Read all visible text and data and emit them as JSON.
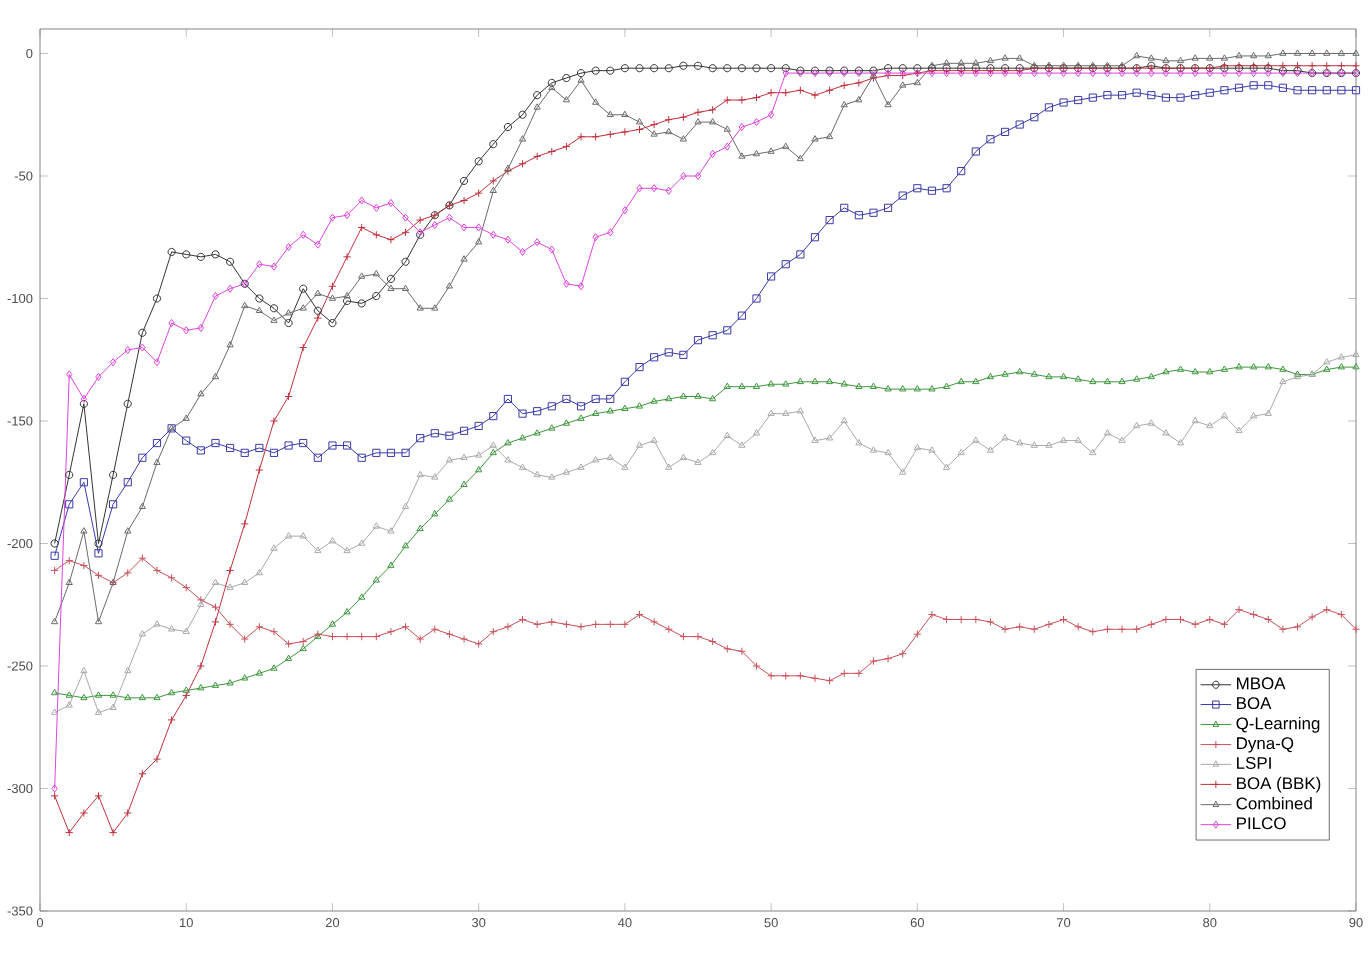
{
  "chart_data": {
    "type": "line",
    "xlim": [
      0,
      90
    ],
    "ylim": [
      -350,
      10
    ],
    "xticks": [
      0,
      10,
      20,
      30,
      40,
      50,
      60,
      70,
      80,
      90
    ],
    "yticks": [
      -350,
      -300,
      -250,
      -200,
      -150,
      -100,
      -50,
      0
    ],
    "x": [
      1,
      2,
      3,
      4,
      5,
      6,
      7,
      8,
      9,
      10,
      11,
      12,
      13,
      14,
      15,
      16,
      17,
      18,
      19,
      20,
      21,
      22,
      23,
      24,
      25,
      26,
      27,
      28,
      29,
      30,
      31,
      32,
      33,
      34,
      35,
      36,
      37,
      38,
      39,
      40,
      41,
      42,
      43,
      44,
      45,
      46,
      47,
      48,
      49,
      50,
      51,
      52,
      53,
      54,
      55,
      56,
      57,
      58,
      59,
      60,
      61,
      62,
      63,
      64,
      65,
      66,
      67,
      68,
      69,
      70,
      71,
      72,
      73,
      74,
      75,
      76,
      77,
      78,
      79,
      80,
      81,
      82,
      83,
      84,
      85,
      86,
      87,
      88,
      89,
      90
    ],
    "grid": false,
    "legend": "bottom right",
    "line_style": "solid",
    "series": [
      {
        "name": "MBOA",
        "color": "#333333",
        "marker": "circle",
        "values": [
          -200,
          -172,
          -143,
          -200,
          -172,
          -143,
          -114,
          -100,
          -81,
          -82,
          -83,
          -82,
          -85,
          -94,
          -100,
          -104,
          -110,
          -96,
          -105,
          -110,
          -101,
          -102,
          -99,
          -92,
          -85,
          -74,
          -66,
          -62,
          -52,
          -44,
          -37,
          -30,
          -25,
          -17,
          -12,
          -10,
          -8,
          -7,
          -7,
          -6,
          -6,
          -6,
          -6,
          -5,
          -5,
          -6,
          -6,
          -6,
          -6,
          -6,
          -6,
          -7,
          -7,
          -7,
          -7,
          -7,
          -7,
          -6,
          -6,
          -6,
          -6,
          -6,
          -6,
          -6,
          -6,
          -6,
          -6,
          -6,
          -6,
          -6,
          -6,
          -6,
          -6,
          -6,
          -6,
          -5,
          -6,
          -6,
          -6,
          -6,
          -6,
          -6,
          -6,
          -6,
          -7,
          -7,
          -8,
          -8,
          -8,
          -8
        ]
      },
      {
        "name": "BOA",
        "color": "#3a3aa8",
        "marker": "square",
        "values": [
          -205,
          -184,
          -175,
          -204,
          -184,
          -175,
          -165,
          -159,
          -153,
          -158,
          -162,
          -159,
          -161,
          -163,
          -161,
          -163,
          -160,
          -159,
          -165,
          -160,
          -160,
          -165,
          -163,
          -163,
          -163,
          -157,
          -155,
          -156,
          -154,
          -152,
          -148,
          -141,
          -147,
          -146,
          -144,
          -141,
          -144,
          -141,
          -141,
          -134,
          -128,
          -124,
          -122,
          -123,
          -117,
          -115,
          -113,
          -107,
          -100,
          -91,
          -86,
          -82,
          -75,
          -68,
          -63,
          -66,
          -65,
          -63,
          -58,
          -55,
          -56,
          -55,
          -48,
          -40,
          -35,
          -32,
          -29,
          -26,
          -22,
          -20,
          -19,
          -18,
          -17,
          -17,
          -16,
          -17,
          -18,
          -18,
          -17,
          -16,
          -15,
          -14,
          -13,
          -13,
          -14,
          -15,
          -15,
          -15,
          -15,
          -15
        ]
      },
      {
        "name": "Q-Learning",
        "color": "#3c963c",
        "marker": "triangle",
        "values": [
          -261,
          -262,
          -263,
          -262,
          -262,
          -263,
          -263,
          -263,
          -261,
          -260,
          -259,
          -258,
          -257,
          -255,
          -253,
          -251,
          -247,
          -243,
          -238,
          -233,
          -228,
          -222,
          -215,
          -209,
          -201,
          -194,
          -188,
          -182,
          -176,
          -170,
          -163,
          -159,
          -157,
          -155,
          -153,
          -151,
          -149,
          -147,
          -146,
          -145,
          -144,
          -142,
          -141,
          -140,
          -140,
          -141,
          -136,
          -136,
          -136,
          -135,
          -135,
          -134,
          -134,
          -134,
          -135,
          -136,
          -136,
          -137,
          -137,
          -137,
          -137,
          -136,
          -134,
          -134,
          -132,
          -131,
          -130,
          -131,
          -132,
          -132,
          -133,
          -134,
          -134,
          -134,
          -133,
          -132,
          -130,
          -129,
          -130,
          -130,
          -129,
          -128,
          -128,
          -128,
          -129,
          -131,
          -131,
          -129,
          -128,
          -128
        ]
      },
      {
        "name": "Dyna-Q",
        "color": "#c8505a",
        "marker": "cross",
        "values": [
          -211,
          -207,
          -209,
          -213,
          -216,
          -212,
          -206,
          -211,
          -214,
          -218,
          -223,
          -226,
          -233,
          -239,
          -234,
          -236,
          -241,
          -240,
          -237,
          -238,
          -238,
          -238,
          -238,
          -236,
          -234,
          -239,
          -235,
          -237,
          -239,
          -241,
          -236,
          -234,
          -231,
          -233,
          -232,
          -233,
          -234,
          -233,
          -233,
          -233,
          -229,
          -232,
          -235,
          -238,
          -238,
          -240,
          -243,
          -244,
          -250,
          -254,
          -254,
          -254,
          -255,
          -256,
          -253,
          -253,
          -248,
          -247,
          -245,
          -237,
          -229,
          -231,
          -231,
          -231,
          -232,
          -235,
          -234,
          -235,
          -233,
          -231,
          -234,
          -236,
          -235,
          -235,
          -235,
          -233,
          -231,
          -231,
          -233,
          -231,
          -233,
          -227,
          -229,
          -231,
          -235,
          -234,
          -230,
          -227,
          -229,
          -235
        ]
      },
      {
        "name": "LSPI",
        "color": "#aaaaaa",
        "marker": "triangle",
        "values": [
          -269,
          -266,
          -252,
          -269,
          -267,
          -252,
          -237,
          -233,
          -235,
          -236,
          -225,
          -216,
          -218,
          -216,
          -212,
          -202,
          -197,
          -197,
          -203,
          -199,
          -203,
          -200,
          -193,
          -195,
          -185,
          -172,
          -173,
          -166,
          -165,
          -164,
          -160,
          -166,
          -169,
          -172,
          -173,
          -171,
          -169,
          -166,
          -165,
          -169,
          -160,
          -158,
          -169,
          -165,
          -167,
          -163,
          -156,
          -160,
          -155,
          -147,
          -147,
          -146,
          -158,
          -157,
          -150,
          -159,
          -162,
          -163,
          -171,
          -161,
          -162,
          -169,
          -163,
          -158,
          -162,
          -157,
          -159,
          -160,
          -160,
          -158,
          -158,
          -163,
          -155,
          -158,
          -152,
          -151,
          -155,
          -159,
          -150,
          -152,
          -148,
          -154,
          -148,
          -147,
          -134,
          -132,
          -131,
          -126,
          -124,
          -123
        ]
      },
      {
        "name": "BOA (BBK)",
        "color": "#c0303c",
        "marker": "cross",
        "values": [
          -303,
          -318,
          -310,
          -303,
          -318,
          -310,
          -294,
          -288,
          -272,
          -262,
          -250,
          -232,
          -211,
          -192,
          -170,
          -150,
          -140,
          -120,
          -108,
          -95,
          -83,
          -71,
          -74,
          -76,
          -73,
          -68,
          -66,
          -62,
          -60,
          -57,
          -52,
          -48,
          -45,
          -42,
          -40,
          -38,
          -34,
          -34,
          -33,
          -32,
          -31,
          -29,
          -27,
          -26,
          -24,
          -23,
          -19,
          -19,
          -18,
          -16,
          -16,
          -15,
          -17,
          -15,
          -13,
          -12,
          -10,
          -9,
          -9,
          -8,
          -7,
          -7,
          -7,
          -7,
          -7,
          -7,
          -7,
          -6,
          -6,
          -6,
          -6,
          -6,
          -6,
          -6,
          -6,
          -6,
          -6,
          -6,
          -6,
          -6,
          -5,
          -5,
          -5,
          -5,
          -5,
          -5,
          -5,
          -5,
          -5,
          -5
        ]
      },
      {
        "name": "Combined",
        "color": "#6a6a6a",
        "marker": "triangle",
        "values": [
          -232,
          -216,
          -195,
          -232,
          -216,
          -195,
          -185,
          -167,
          -153,
          -149,
          -139,
          -132,
          -119,
          -103,
          -105,
          -109,
          -106,
          -104,
          -98,
          -100,
          -99,
          -91,
          -90,
          -96,
          -96,
          -104,
          -104,
          -95,
          -84,
          -77,
          -56,
          -47,
          -35,
          -22,
          -14,
          -19,
          -11,
          -20,
          -25,
          -25,
          -28,
          -33,
          -32,
          -35,
          -28,
          -28,
          -31,
          -42,
          -41,
          -40,
          -38,
          -43,
          -35,
          -34,
          -21,
          -19,
          -9,
          -21,
          -13,
          -12,
          -5,
          -4,
          -4,
          -4,
          -3,
          -2,
          -2,
          -5,
          -5,
          -5,
          -5,
          -5,
          -5,
          -5,
          -1,
          -2,
          -3,
          -3,
          -2,
          -2,
          -2,
          -1,
          -1,
          -1,
          0,
          0,
          0,
          0,
          0,
          0
        ]
      },
      {
        "name": "PILCO",
        "color": "#dd44dd",
        "marker": "diamond",
        "values": [
          -300,
          -131,
          -141,
          -132,
          -126,
          -121,
          -120,
          -126,
          -110,
          -113,
          -112,
          -99,
          -96,
          -94,
          -86,
          -87,
          -79,
          -74,
          -78,
          -67,
          -66,
          -60,
          -63,
          -61,
          -67,
          -73,
          -70,
          -67,
          -71,
          -71,
          -74,
          -76,
          -81,
          -77,
          -80,
          -94,
          -95,
          -75,
          -73,
          -64,
          -55,
          -55,
          -56,
          -50,
          -50,
          -41,
          -38,
          -30,
          -28,
          -25,
          -8,
          -8,
          -8,
          -8,
          -8,
          -8,
          -8,
          -8,
          -8,
          -8,
          -8,
          -8,
          -8,
          -8,
          -8,
          -8,
          -8,
          -8,
          -8,
          -8,
          -8,
          -8,
          -8,
          -8,
          -8,
          -8,
          -8,
          -8,
          -8,
          -8,
          -8,
          -8,
          -8,
          -8,
          -8,
          -8,
          -8,
          -8,
          -8,
          -8
        ]
      }
    ]
  }
}
